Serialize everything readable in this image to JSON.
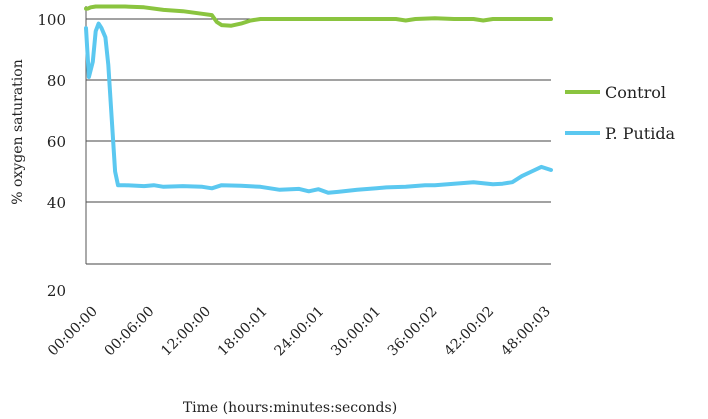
{
  "chart_data": {
    "type": "line",
    "xlabel": "Time (hours:minutes:seconds)",
    "ylabel": "% oxygen saturation",
    "x_tick_labels": [
      "00:00:00",
      "00:06:00",
      "12:00:00",
      "18:00:01",
      "24:00:01",
      "30:00:01",
      "36:00:02",
      "42:00:02",
      "48:00:03"
    ],
    "y_tick_labels": [
      "20",
      "40",
      "60",
      "80",
      "100"
    ],
    "ylim": [
      20,
      105
    ],
    "xlim": [
      0,
      48
    ],
    "grid": "horizontal",
    "legend_position": "right",
    "series": [
      {
        "name": "Control",
        "color": "#8ac43f",
        "x": [
          0,
          0.2,
          0.5,
          1,
          2,
          4,
          6,
          8,
          10,
          12,
          13,
          13.5,
          14,
          15,
          16,
          17,
          18,
          20,
          22,
          24,
          26,
          28,
          30,
          32,
          33,
          34,
          36,
          38,
          40,
          41,
          42,
          44,
          46,
          48
        ],
        "y": [
          104,
          104,
          104.5,
          104.8,
          104.8,
          104.8,
          104.5,
          103.5,
          103,
          102,
          101.5,
          99,
          98,
          97.8,
          98.5,
          99.5,
          100,
          100,
          100,
          100,
          100,
          100,
          100,
          100,
          99.5,
          100,
          100.3,
          100,
          100,
          99.5,
          100,
          100,
          100,
          100
        ]
      },
      {
        "name": "P. Putida",
        "color": "#5bc8f0",
        "x": [
          0,
          0.3,
          0.7,
          1,
          1.3,
          1.6,
          2,
          2.3,
          2.6,
          3,
          3.3,
          3.7,
          4,
          6,
          7,
          8,
          10,
          12,
          13,
          14,
          16,
          18,
          20,
          22,
          23,
          24,
          25,
          26,
          28,
          30,
          31,
          33,
          35,
          36,
          38,
          40,
          42,
          43,
          44,
          45,
          46,
          47,
          48
        ],
        "y": [
          97,
          81,
          86,
          96,
          98.5,
          97,
          94,
          85,
          70,
          50,
          45.5,
          45.5,
          45.5,
          45.2,
          45.5,
          45,
          45.2,
          45,
          44.5,
          45.5,
          45.3,
          45,
          44,
          44.3,
          43.5,
          44.2,
          43,
          43.3,
          44,
          44.5,
          44.8,
          45,
          45.5,
          45.5,
          46,
          46.5,
          45.8,
          46,
          46.5,
          48.5,
          50,
          51.5,
          50.5
        ]
      }
    ]
  }
}
